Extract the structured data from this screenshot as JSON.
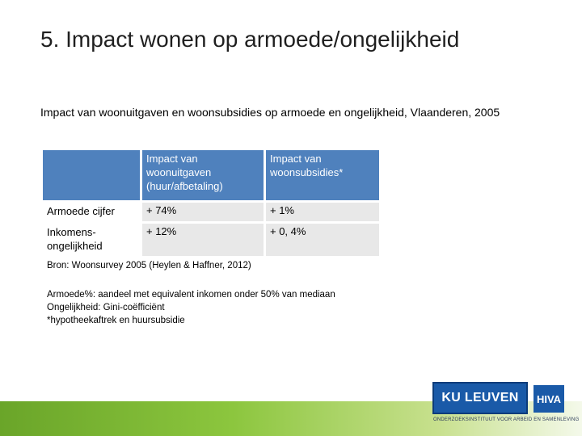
{
  "title": "5. Impact wonen op armoede/ongelijkheid",
  "subtitle": "Impact van woonuitgaven en woonsubsidies op armoede en ongelijkheid, Vlaanderen, 2005",
  "table": {
    "columns": [
      "Impact van woonuitgaven (huur/afbetaling)",
      "Impact van woonsubsidies*"
    ],
    "rows": [
      {
        "label": "Armoede cijfer",
        "values": [
          "+ 74%",
          "+ 1%"
        ]
      },
      {
        "label": "Inkomens-ongelijkheid",
        "values": [
          "+ 12%",
          "+ 0, 4%"
        ]
      }
    ]
  },
  "source": "Bron: Woonsurvey 2005 (Heylen & Haffner, 2012)",
  "notes": [
    "Armoede%: aandeel met equivalent inkomen onder 50% van mediaan",
    "Ongelijkheid: Gini-coëfficiënt",
    "*hypotheekaftrek en huursubsidie"
  ],
  "logos": {
    "ku_leuven": "KU LEUVEN",
    "hiva": "HIVA",
    "tagline": "ONDERZOEKSINSTITUUT VOOR ARBEID EN SAMENLEVING"
  },
  "colors": {
    "header_fill": "#4f81bd",
    "cell_fill": "#e8e8e8",
    "footer_green": "#8cc63e",
    "logo_blue": "#1a5aa8"
  }
}
